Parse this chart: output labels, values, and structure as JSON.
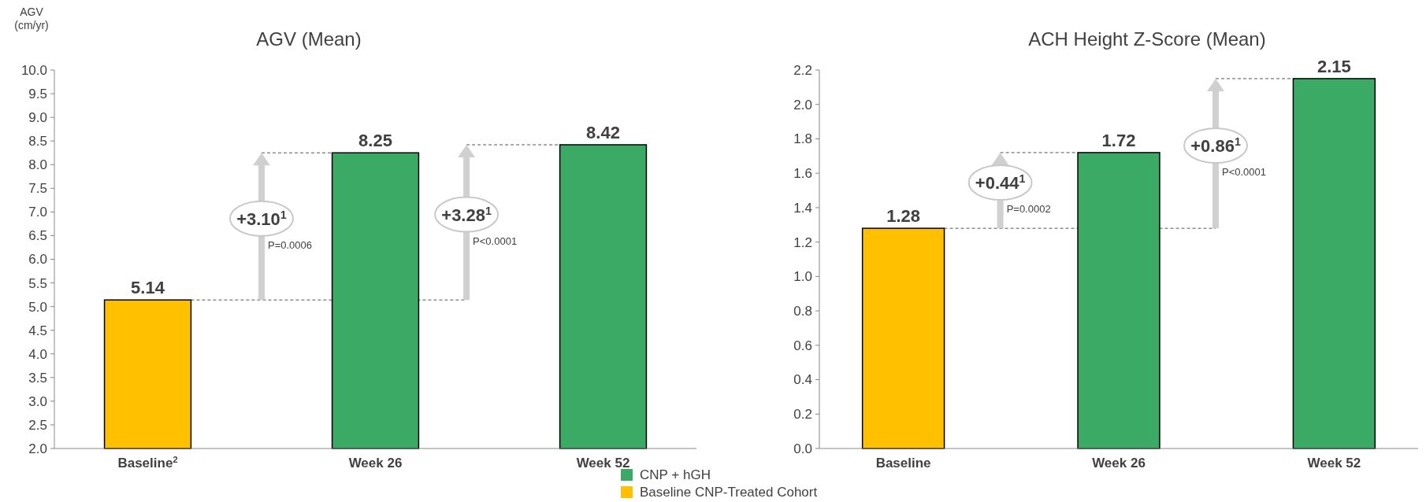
{
  "chart_data": [
    {
      "type": "bar",
      "title": "AGV (Mean)",
      "ylabel": "AGV (cm/yr)",
      "categories": [
        "Baseline$^{2}$",
        "Week 26",
        "Week 52"
      ],
      "series": [
        {
          "name": "CNP + hGH",
          "color": "#3aaa64",
          "values": [
            null,
            8.25,
            8.42
          ]
        },
        {
          "name": "Baseline CNP-Treated Cohort",
          "color": "#ffc000",
          "values": [
            5.14,
            null,
            null
          ]
        }
      ],
      "ref_lines": [
        {
          "axis": "y",
          "value": 5.14,
          "line_style": "dashed",
          "color": "#555555"
        },
        {
          "axis": "y",
          "value": 8.25,
          "line_style": "dashed",
          "color": "#555555"
        },
        {
          "axis": "y",
          "value": 8.42,
          "line_style": "dashed",
          "color": "#555555"
        }
      ],
      "ylim": [
        2,
        10
      ],
      "yticks": [
        {
          "value": 2,
          "label": "2.0"
        },
        {
          "value": 2.5,
          "label": "2.5"
        },
        {
          "value": 3,
          "label": "3.0"
        },
        {
          "value": 3.5,
          "label": "3.5"
        },
        {
          "value": 4,
          "label": "4.0"
        },
        {
          "value": 4.5,
          "label": "4.5"
        },
        {
          "value": 5,
          "label": "5.0"
        },
        {
          "value": 5.5,
          "label": "5.5"
        },
        {
          "value": 6,
          "label": "6.0"
        },
        {
          "value": 6.5,
          "label": "6.5"
        },
        {
          "value": 7,
          "label": "7.0"
        },
        {
          "value": 7.5,
          "label": "7.5"
        },
        {
          "value": 8,
          "label": "8.0"
        },
        {
          "value": 8.5,
          "label": "8.5"
        },
        {
          "value": 9,
          "label": "9.0"
        },
        {
          "value": 9.5,
          "label": "9.5"
        },
        {
          "value": 10,
          "label": "10.0"
        }
      ],
      "data_labels": true,
      "legend": "bottom right",
      "annotations": [
        "+3.10$^{1}$",
        "P=0.0006",
        "+3.28$^{1}$",
        "P<0.0001"
      ]
    },
    {
      "type": "bar",
      "title": "ACH Height Z-Score (Mean)",
      "categories": [
        "Baseline",
        "Week 26",
        "Week 52"
      ],
      "series": [
        {
          "color": "#3aaa64",
          "values": [
            null,
            1.72,
            2.15
          ]
        },
        {
          "color": "#ffc000",
          "values": [
            1.28,
            null,
            null
          ]
        }
      ],
      "ref_lines": [
        {
          "axis": "y",
          "value": 1.28,
          "line_style": "dashed",
          "color": "#555555"
        },
        {
          "axis": "y",
          "value": 1.72,
          "line_style": "dashed",
          "color": "#555555"
        },
        {
          "axis": "y",
          "value": 2.15,
          "line_style": "dashed",
          "color": "#555555"
        }
      ],
      "ylim": [
        0,
        2.2
      ],
      "yticks": [
        {
          "value": 0,
          "label": "0.0"
        },
        {
          "value": 0.2,
          "label": "0.2"
        },
        {
          "value": 0.4,
          "label": "0.4"
        },
        {
          "value": 0.6,
          "label": "0.6"
        },
        {
          "value": 0.8,
          "label": "0.8"
        },
        {
          "value": 1,
          "label": "1.0"
        },
        {
          "value": 1.2,
          "label": "1.2"
        },
        {
          "value": 1.4,
          "label": "1.4"
        },
        {
          "value": 1.6,
          "label": "1.6"
        },
        {
          "value": 1.8,
          "label": "1.8"
        },
        {
          "value": 2,
          "label": "2.0"
        },
        {
          "value": 2.2,
          "label": "2.2"
        }
      ],
      "data_labels": true,
      "annotations": [
        "+0.44$^{1}$",
        "P=0.0002",
        "+0.86$^{1}$",
        "P<0.0001"
      ]
    }
  ]
}
